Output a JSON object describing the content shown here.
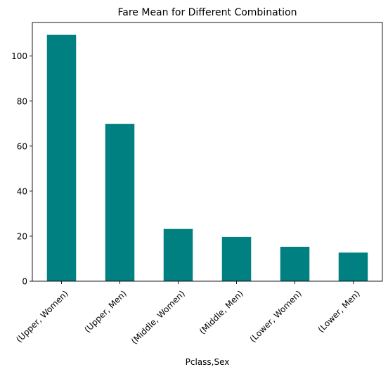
{
  "chart_data": {
    "type": "bar",
    "title": "Fare Mean for Different Combination",
    "xlabel": "Pclass,Sex",
    "ylabel": "",
    "categories": [
      "(Upper, Women)",
      "(Upper, Men)",
      "(Middle, Women)",
      "(Middle, Men)",
      "(Lower, Women)",
      "(Lower, Men)"
    ],
    "values": [
      109.4,
      69.9,
      23.2,
      19.7,
      15.3,
      12.7
    ],
    "ylim": [
      0,
      114.9
    ],
    "yticks": [
      0,
      20,
      40,
      60,
      80,
      100
    ],
    "bar_color": "#008080",
    "grid": false,
    "legend": "none"
  }
}
